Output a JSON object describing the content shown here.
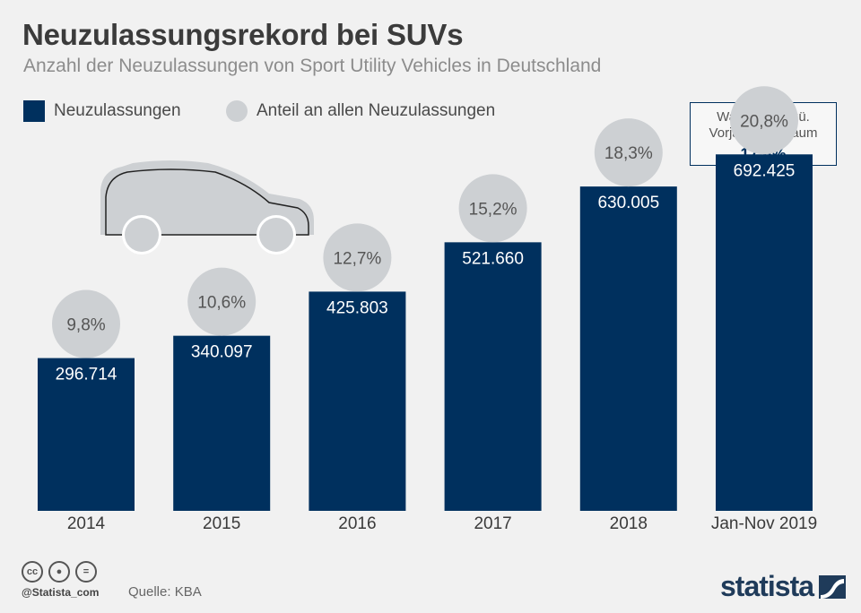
{
  "header": {
    "title": "Neuzulassungsrekord bei SUVs",
    "subtitle": "Anzahl der Neuzulassungen von Sport Utility Vehicles in Deutschland"
  },
  "legend": {
    "bar_label": "Neuzulassungen",
    "circle_label": "Anteil an allen Neuzulassungen"
  },
  "growth_box": {
    "label": "Wachstum ggü. Vorjahreszeitraum",
    "value": "17,6%"
  },
  "footer": {
    "handle": "@Statista_com",
    "source": "Quelle: KBA",
    "brand": "statista"
  },
  "colors": {
    "bar": "#00305e",
    "circle": "#cdd0d3",
    "background": "#f1f1f1"
  },
  "icons": {
    "car": "car-silhouette-icon",
    "license": [
      "cc-icon",
      "by-icon",
      "nd-icon"
    ],
    "brand": "statista-logo-icon"
  },
  "chart_data": {
    "type": "bar",
    "categories": [
      "2014",
      "2015",
      "2016",
      "2017",
      "2018",
      "Jan-Nov 2019"
    ],
    "series": [
      {
        "name": "Neuzulassungen",
        "values": [
          296714,
          340097,
          425803,
          521660,
          630005,
          692425
        ]
      },
      {
        "name": "Anteil an allen Neuzulassungen",
        "values": [
          9.8,
          10.6,
          12.7,
          15.2,
          18.3,
          20.8
        ]
      }
    ],
    "value_labels": [
      "296.714",
      "340.097",
      "425.803",
      "521.660",
      "630.005",
      "692.425"
    ],
    "share_labels": [
      "9,8%",
      "10,6%",
      "12,7%",
      "15,2%",
      "18,3%",
      "20,8%"
    ],
    "ylim": [
      0,
      860000
    ],
    "grid": false
  }
}
